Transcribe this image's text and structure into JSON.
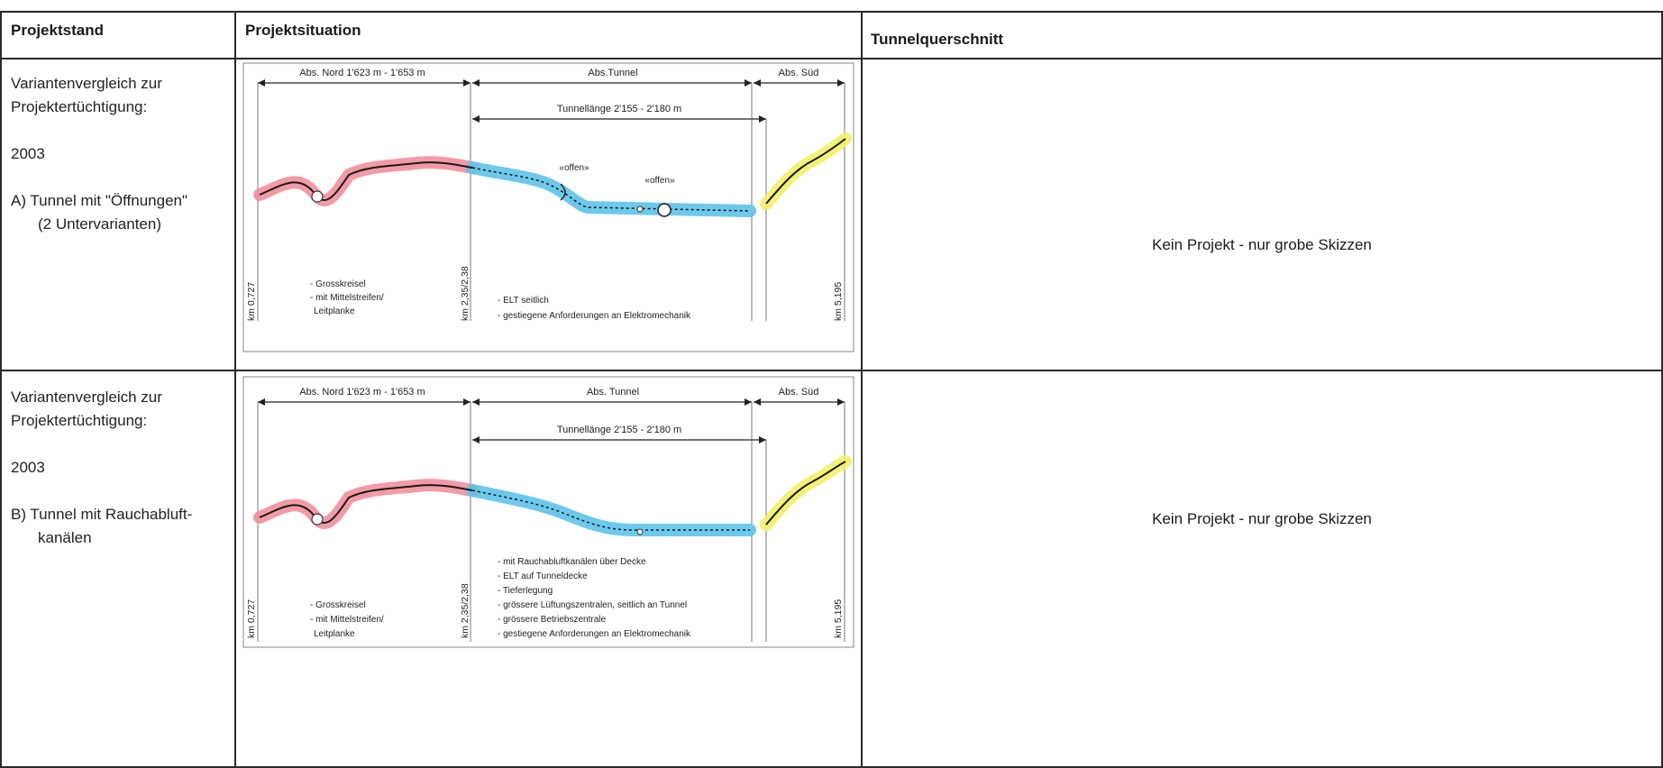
{
  "header": {
    "col1": "Projektstand",
    "col2": "Projektsituation",
    "col3": "Tunnelquerschnitt"
  },
  "rows": [
    {
      "stand_line1": "Variantenvergleich zur",
      "stand_line2": "Projektertüchtigung:",
      "year": "2003",
      "variant_line1": "A) Tunnel mit \"Öffnungen\"",
      "variant_line2": "(2 Untervarianten)",
      "section_nord": "Abs. Nord 1'623 m - 1'653 m",
      "section_tunnel": "Abs.Tunnel",
      "section_sued": "Abs. Süd",
      "tunnel_length": "Tunnellänge 2'155 - 2'180 m",
      "open_label_1": "«offen»",
      "open_label_2": "«offen»",
      "km_start": "km 0,727",
      "km_mid": "km 2,35/2,38",
      "km_end": "km 5,195",
      "notes_left": [
        "- Grosskreisel",
        "- mit Mittelstreifen/",
        "Leitplanke"
      ],
      "notes_right": [
        "- ELT seitlich",
        "- gestiegene Anforderungen an Elektromechanik"
      ],
      "querschnitt": "Kein Projekt - nur grobe Skizzen"
    },
    {
      "stand_line1": "Variantenvergleich zur",
      "stand_line2": "Projektertüchtigung:",
      "year": "2003",
      "variant_line1": "B) Tunnel mit Rauchabluft-",
      "variant_line2": "kanälen",
      "section_nord": "Abs. Nord 1'623 m - 1'653 m",
      "section_tunnel": "Abs. Tunnel",
      "section_sued": "Abs. Süd",
      "tunnel_length": "Tunnellänge 2'155 - 2'180 m",
      "km_start": "km 0,727",
      "km_mid": "km 2,35/2,38",
      "km_end": "km 5,195",
      "notes_left": [
        "- Grosskreisel",
        "- mit Mittelstreifen/",
        "Leitplanke"
      ],
      "notes_right": [
        "- mit Rauchabluftkanälen über Decke",
        "- ELT auf Tunneldecke",
        "- Tieferlegung",
        "- grössere Lüftungszentralen, seitlich an Tunnel",
        "- grössere Betriebszentrale",
        "- gestiegene Anforderungen an Elektromechanik"
      ],
      "querschnitt": "Kein Projekt - nur grobe Skizzen"
    }
  ],
  "colors": {
    "nord": "#f08a96",
    "tunnel": "#5cc3ea",
    "sued": "#f3ef6a",
    "line": "#1a1a1a"
  }
}
